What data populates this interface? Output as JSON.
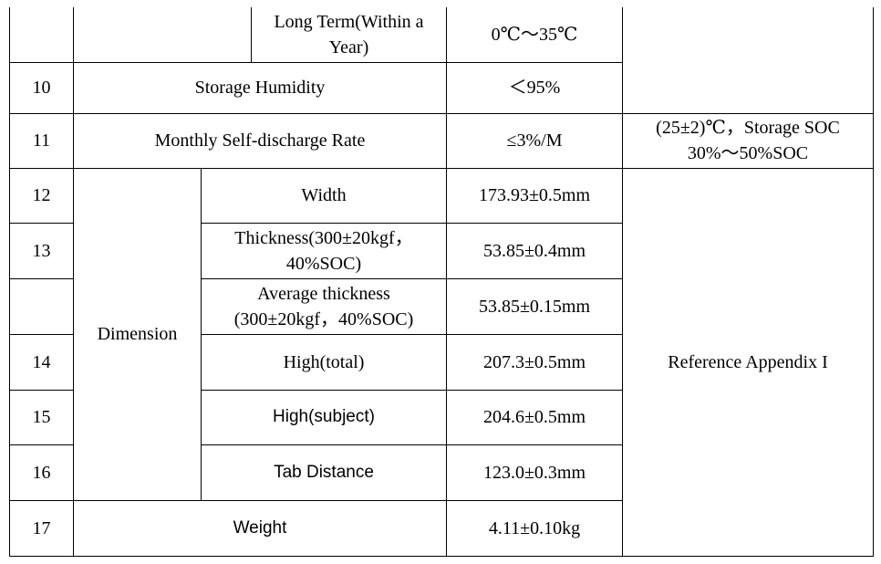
{
  "table": {
    "row_long_term": {
      "label_line1": "Long Term(Within a",
      "label_line2": "Year)",
      "value": "0℃～35℃"
    },
    "row_10": {
      "num": "10",
      "label": "Storage Humidity",
      "value": "＜95%"
    },
    "row_11": {
      "num": "11",
      "label": "Monthly Self-discharge Rate",
      "value": "≤3%/M",
      "remark_line1": "(25±2)℃，Storage SOC",
      "remark_line2": "30%～50%SOC"
    },
    "dimension_group_label": "Dimension",
    "dimension_remark": "Reference Appendix I",
    "row_12": {
      "num": "12",
      "label": "Width",
      "value": "173.93±0.5mm"
    },
    "row_13": {
      "num": "13",
      "label_line1": "Thickness(300±20kgf，",
      "label_line2": "40%SOC)",
      "value": "53.85±0.4mm"
    },
    "row_avg": {
      "label_line1": "Average thickness",
      "label_line2": "(300±20kgf，40%SOC)",
      "value": "53.85±0.15mm"
    },
    "row_14": {
      "num": "14",
      "label": "High(total)",
      "value": "207.3±0.5mm"
    },
    "row_15": {
      "num": "15",
      "label": "High(subject)",
      "value": "204.6±0.5mm"
    },
    "row_16": {
      "num": "16",
      "label": "Tab Distance",
      "value": "123.0±0.3mm"
    },
    "row_17": {
      "num": "17",
      "label": "Weight",
      "value": "4.11±0.10kg"
    }
  }
}
